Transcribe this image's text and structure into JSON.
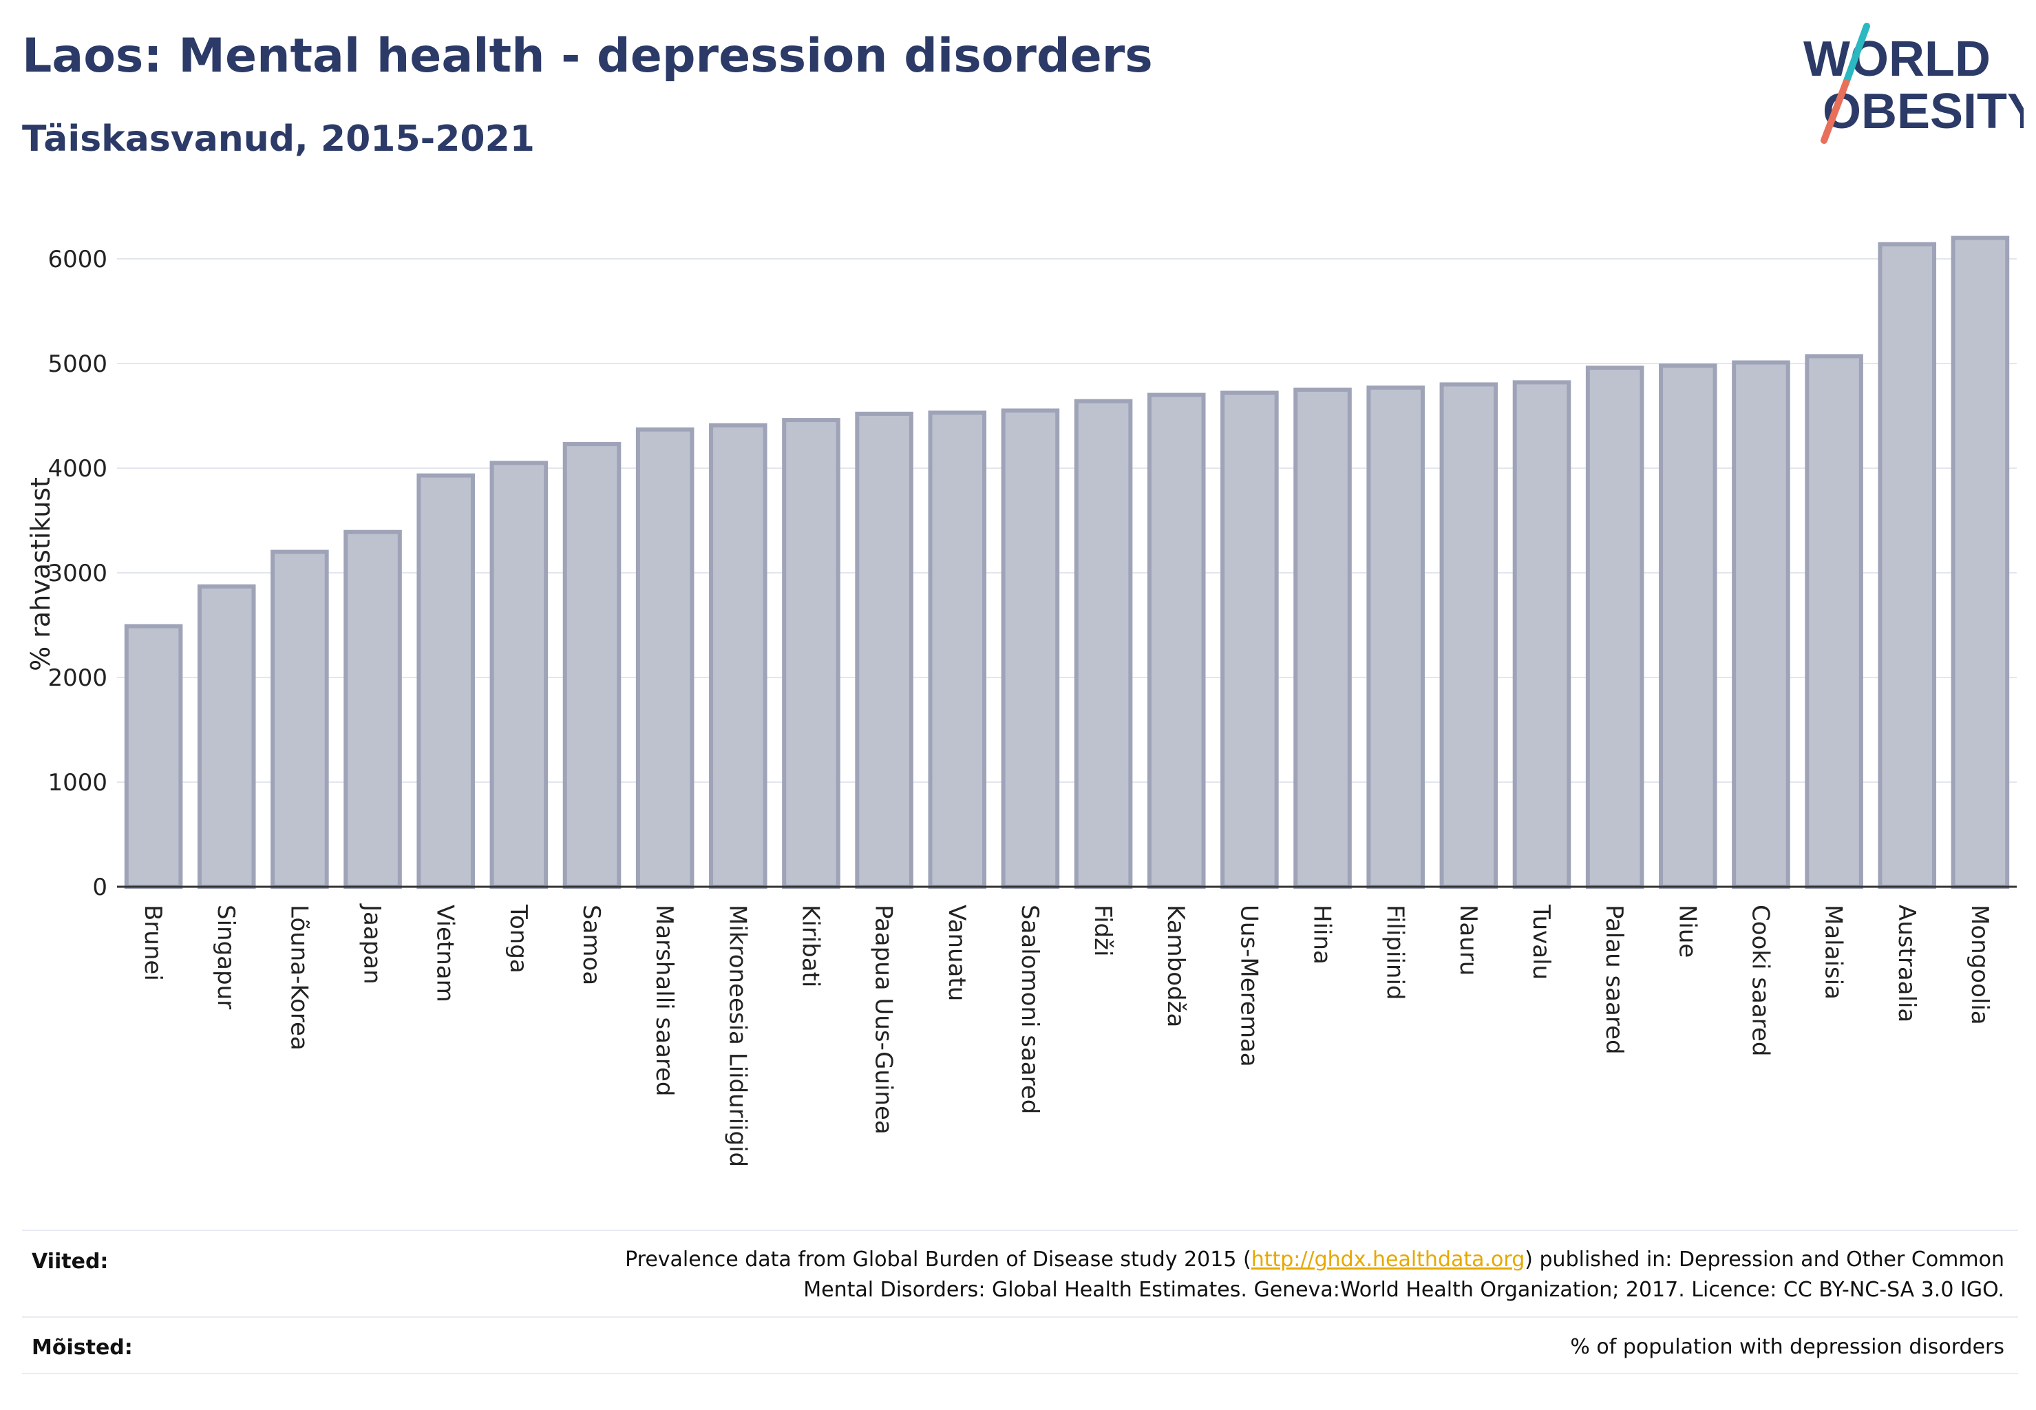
{
  "title": "Laos: Mental health - depression disorders",
  "subtitle": "Täiskasvanud, 2015-2021",
  "logo": {
    "line1": "WORLD",
    "line2": "OBESITY",
    "accent_colors": [
      "#2bb8c0",
      "#e8705a"
    ]
  },
  "chart_data": {
    "type": "bar",
    "ylabel": "% rahvastikust",
    "ylim": [
      0,
      6500
    ],
    "yticks": [
      0,
      1000,
      2000,
      3000,
      4000,
      5000,
      6000
    ],
    "grid": true,
    "bar_color": "#bec2cf",
    "bar_edge_color": "#9ea3b8",
    "categories": [
      "Brunei",
      "Singapur",
      "Lõuna-Korea",
      "Jaapan",
      "Vietnam",
      "Tonga",
      "Samoa",
      "Marshalli saared",
      "Mikroneesia Liiduriigid",
      "Kiribati",
      "Paapua Uus-Guinea",
      "Vanuatu",
      "Saalomoni saared",
      "Fidži",
      "Kambodža",
      "Uus-Meremaa",
      "Hiina",
      "Filipiinid",
      "Nauru",
      "Tuvalu",
      "Palau saared",
      "Niue",
      "Cooki saared",
      "Malaisia",
      "Austraalia",
      "Mongoolia"
    ],
    "values": [
      2490,
      2870,
      3200,
      3390,
      3930,
      4050,
      4230,
      4370,
      4410,
      4460,
      4520,
      4530,
      4550,
      4640,
      4700,
      4720,
      4750,
      4770,
      4800,
      4820,
      4960,
      4980,
      5010,
      5070,
      6140,
      6200
    ]
  },
  "footer": {
    "references_label": "Viited:",
    "references_text_1": "Prevalence data from Global Burden of Disease study 2015 (",
    "references_link": "http://ghdx.healthdata.org",
    "references_text_2": ") published in: Depression and Other Common Mental Disorders: Global Health Estimates. Geneva:World Health Organization; 2017. Licence: CC BY-NC-SA 3.0 IGO.",
    "definitions_label": "Mõisted:",
    "definitions_text": "% of population with depression disorders"
  }
}
